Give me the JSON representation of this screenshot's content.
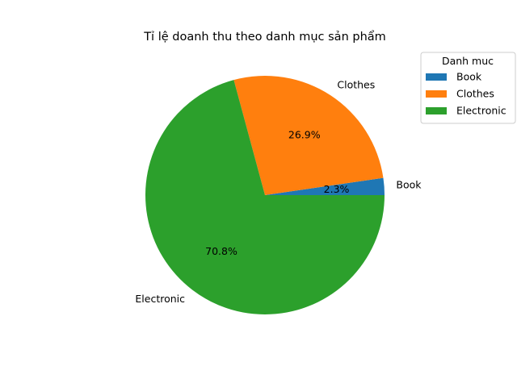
{
  "chart_data": {
    "type": "pie",
    "title": "Tỉ lệ doanh thu theo danh mục sản phẩm",
    "categories": [
      "Book",
      "Clothes",
      "Electronic"
    ],
    "values": [
      2.3,
      26.9,
      70.8
    ],
    "value_labels": [
      "2.3%",
      "26.9%",
      "70.8%"
    ],
    "colors": [
      "#1f77b4",
      "#ff7f0e",
      "#2ca02c"
    ],
    "legend": {
      "title": "Danh muc",
      "placement": "top-right, outside plot",
      "entries": [
        "Book",
        "Clothes",
        "Electronic"
      ]
    },
    "start_angle_deg": 0,
    "direction": "counterclockwise"
  }
}
